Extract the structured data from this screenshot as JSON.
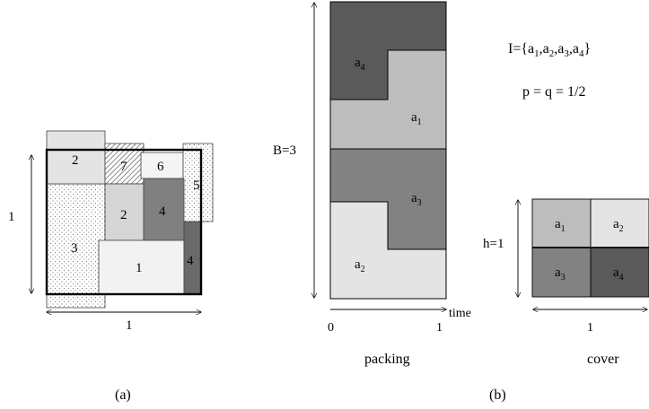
{
  "panel_a": {
    "caption": "(a)",
    "width_label": "1",
    "height_label": "1",
    "pieces": {
      "p2_top": "2",
      "p7": "7",
      "p6": "6",
      "p5": "5",
      "p2_mid": "2",
      "p4_mid": "4",
      "p3": "3",
      "p1": "1",
      "p4_right": "4"
    }
  },
  "panel_b": {
    "caption": "(b)",
    "packing": {
      "title": "packing",
      "height_label": "B=3",
      "axis_label": "time",
      "tick_start": "0",
      "tick_end": "1",
      "items": [
        {
          "base": "a",
          "sub": "4"
        },
        {
          "base": "a",
          "sub": "1"
        },
        {
          "base": "a",
          "sub": "3"
        },
        {
          "base": "a",
          "sub": "2"
        }
      ]
    },
    "instance": {
      "prefix": "I={",
      "suffix": "}",
      "items": [
        {
          "base": "a",
          "sub": "1"
        },
        {
          "base": "a",
          "sub": "2"
        },
        {
          "base": "a",
          "sub": "3"
        },
        {
          "base": "a",
          "sub": "4"
        }
      ],
      "separator": ",",
      "pq": "p = q = 1/2"
    },
    "cover": {
      "title": "cover",
      "height_label": "h=1",
      "width_label": "1",
      "cells": [
        {
          "base": "a",
          "sub": "1"
        },
        {
          "base": "a",
          "sub": "2"
        },
        {
          "base": "a",
          "sub": "3"
        },
        {
          "base": "a",
          "sub": "4"
        }
      ]
    }
  },
  "colors": {
    "light": "#e4e4e4",
    "mid_light": "#bdbdbd",
    "mid": "#828282",
    "dark": "#5a5a5a",
    "white_piece": "#f2f2f2"
  }
}
